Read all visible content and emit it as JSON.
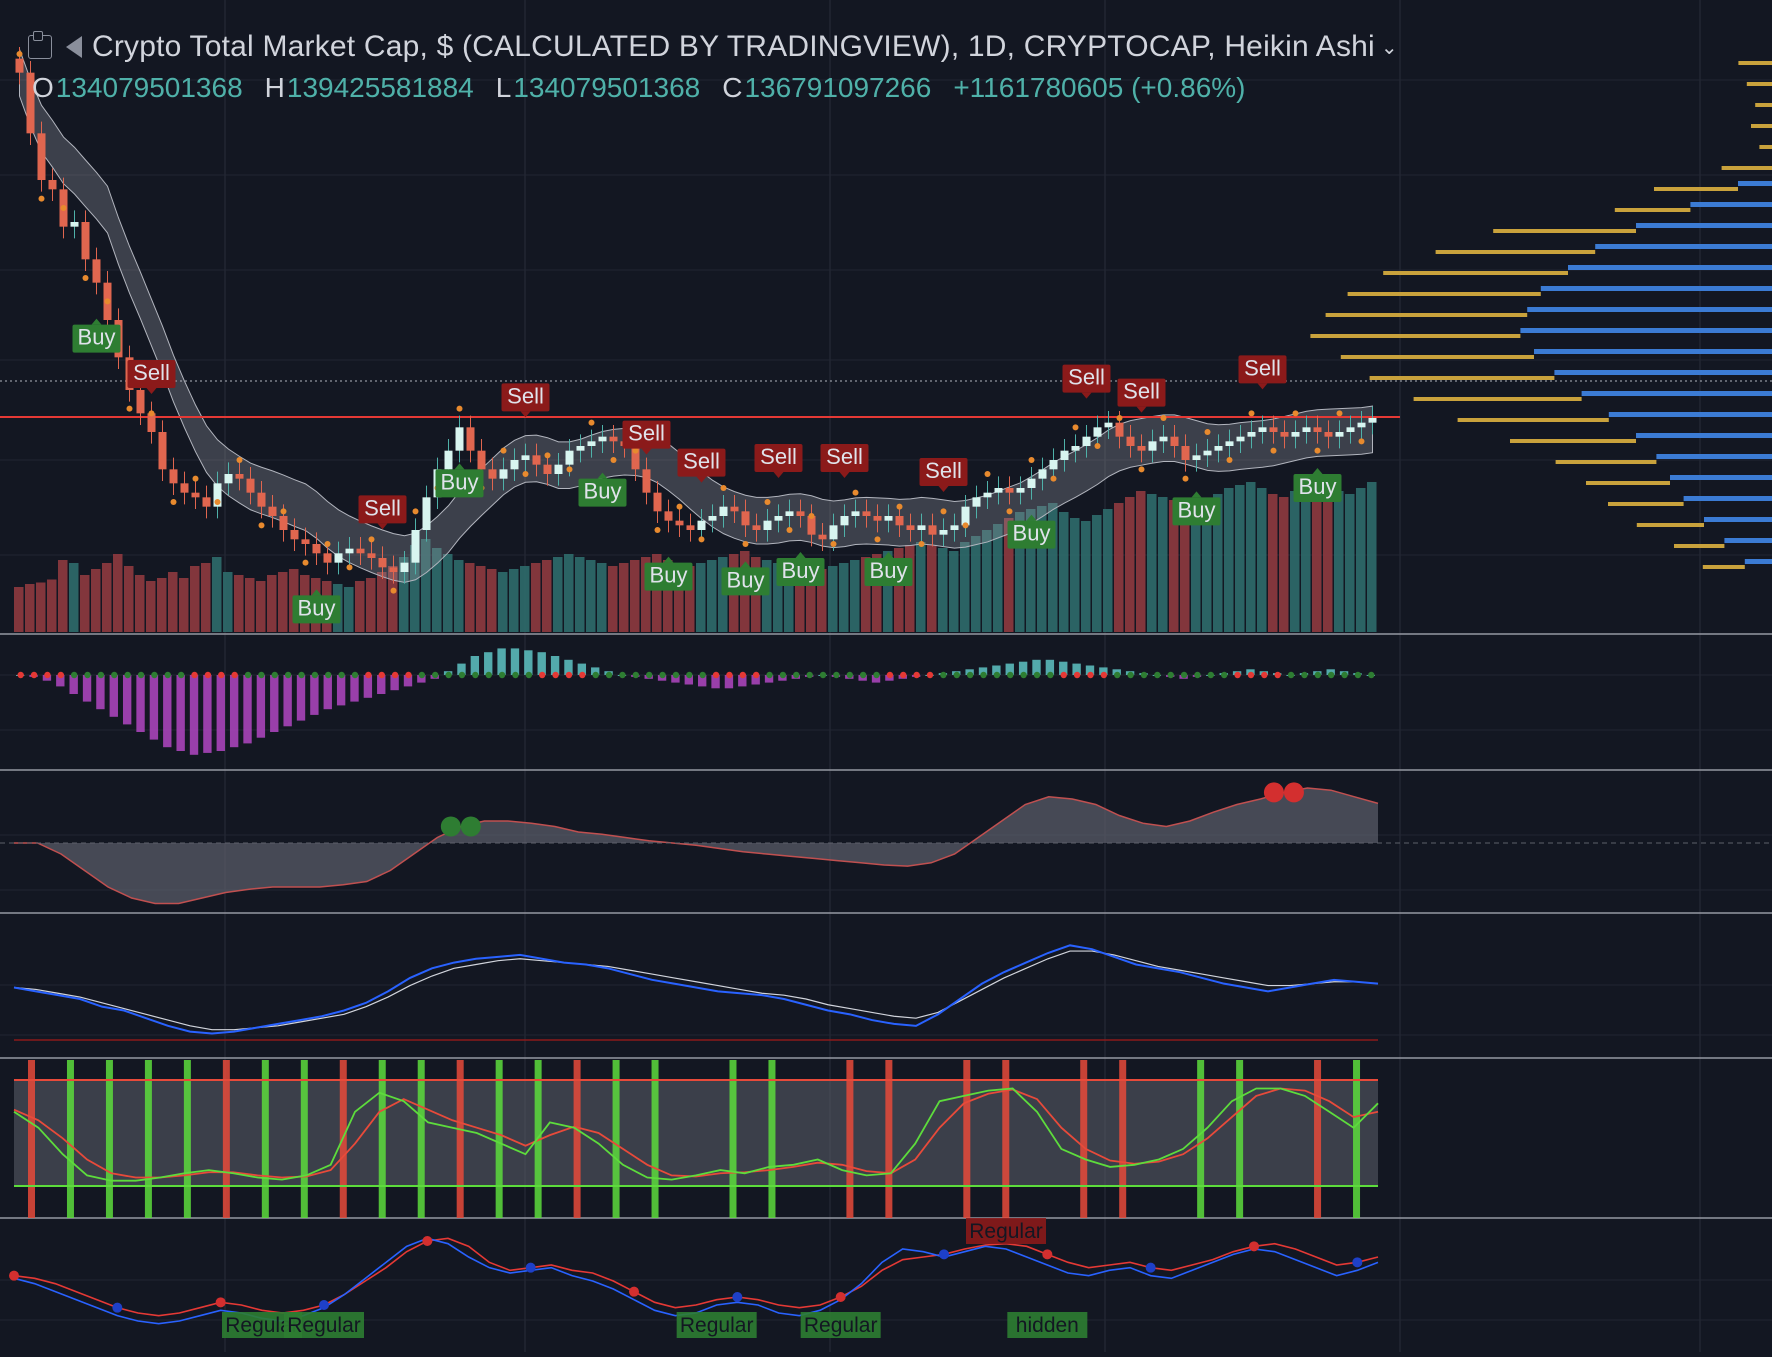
{
  "header": {
    "title": "Crypto Total Market Cap, $ (CALCULATED BY TRADINGVIEW), 1D, CRYPTOCAP, Heikin Ashi",
    "ohlc": {
      "o_label": "O",
      "o_value": "134079501368",
      "h_label": "H",
      "h_value": "139425581884",
      "l_label": "L",
      "l_value": "134079501368",
      "c_label": "C",
      "c_value": "136791097266",
      "change": "+1161780605 (+0.86%)"
    },
    "icons": [
      "chart-logo-icon",
      "flag-icon",
      "chevron-down-icon"
    ]
  },
  "colors": {
    "background": "#131722",
    "bull": "#4fb1a9",
    "bear": "#e0664f",
    "buy_label": "#2e7d32",
    "sell_label": "#8b1a1a",
    "volume_bull": "#2f6b6b",
    "volume_bear": "#8f3a3f",
    "vp_gold": "#c9a23c",
    "vp_blue": "#3b7bd4",
    "macd_bull": "#5fc4c4",
    "macd_bear": "#b146c2",
    "rsi": "#2962ff",
    "stoch_green": "#5ddc3c",
    "stoch_red": "#e84a3a"
  },
  "chart_data": [
    {
      "type": "candlestick",
      "name": "price",
      "closes": [
        173,
        160,
        150,
        148,
        140,
        141,
        133,
        128,
        120,
        112,
        105,
        100,
        96,
        88,
        85,
        83,
        82,
        80,
        85,
        87,
        86,
        83,
        80,
        78,
        75,
        73,
        72,
        70,
        68,
        70,
        71,
        70,
        69,
        67,
        66,
        68,
        75,
        82,
        88,
        92,
        97,
        92,
        88,
        86,
        88,
        90,
        91,
        89,
        87,
        89,
        92,
        93,
        94,
        95,
        94,
        93,
        88,
        83,
        79,
        77,
        76,
        75,
        77,
        78,
        80,
        79,
        76,
        75,
        77,
        78,
        79,
        78,
        74,
        73,
        76,
        78,
        79,
        78,
        77,
        78,
        76,
        75,
        76,
        74,
        75,
        76,
        80,
        82,
        83,
        84,
        83,
        84,
        86,
        88,
        90,
        92,
        93,
        95,
        97,
        98,
        95,
        93,
        92,
        94,
        95,
        93,
        90,
        91,
        92,
        93,
        94,
        95,
        96,
        97,
        96,
        95,
        96,
        97,
        96,
        95,
        96,
        97,
        98,
        99
      ],
      "signals": [
        {
          "label": "Buy",
          "i": 7
        },
        {
          "label": "Sell",
          "i": 12
        },
        {
          "label": "Buy",
          "i": 27
        },
        {
          "label": "Sell",
          "i": 33
        },
        {
          "label": "Buy",
          "i": 40
        },
        {
          "label": "Sell",
          "i": 46
        },
        {
          "label": "Buy",
          "i": 53
        },
        {
          "label": "Sell",
          "i": 57
        },
        {
          "label": "Buy",
          "i": 59
        },
        {
          "label": "Sell",
          "i": 62
        },
        {
          "label": "Buy",
          "i": 66
        },
        {
          "label": "Sell",
          "i": 69
        },
        {
          "label": "Buy",
          "i": 71
        },
        {
          "label": "Sell",
          "i": 75
        },
        {
          "label": "Buy",
          "i": 79
        },
        {
          "label": "Sell",
          "i": 84
        },
        {
          "label": "Buy",
          "i": 92
        },
        {
          "label": "Sell",
          "i": 97
        },
        {
          "label": "Sell",
          "i": 102
        },
        {
          "label": "Buy",
          "i": 107
        },
        {
          "label": "Sell",
          "i": 113
        },
        {
          "label": "Buy",
          "i": 118
        }
      ]
    },
    {
      "type": "bar",
      "name": "volume",
      "values": [
        30,
        32,
        33,
        35,
        48,
        46,
        38,
        42,
        46,
        52,
        44,
        38,
        34,
        36,
        40,
        36,
        44,
        46,
        50,
        40,
        38,
        36,
        34,
        38,
        40,
        42,
        38,
        36,
        34,
        32,
        30,
        34,
        36,
        40,
        44,
        50,
        58,
        62,
        56,
        52,
        48,
        46,
        44,
        42,
        40,
        42,
        44,
        46,
        48,
        50,
        52,
        50,
        48,
        46,
        44,
        46,
        48,
        50,
        52,
        48,
        46,
        44,
        46,
        48,
        50,
        52,
        54,
        50,
        48,
        46,
        44,
        42,
        40,
        42,
        44,
        46,
        48,
        50,
        52,
        54,
        56,
        58,
        60,
        58,
        56,
        54,
        60,
        64,
        68,
        72,
        76,
        80,
        82,
        84,
        86,
        80,
        76,
        74,
        78,
        82,
        86,
        90,
        94,
        92,
        90,
        88,
        86,
        84,
        88,
        92,
        96,
        98,
        100,
        96,
        92,
        90,
        94,
        98,
        100,
        96,
        94,
        92,
        96,
        100
      ]
    },
    {
      "type": "bar",
      "name": "squeeze-momentum",
      "values": [
        0,
        -1,
        -3,
        -6,
        -10,
        -14,
        -18,
        -22,
        -26,
        -30,
        -34,
        -38,
        -40,
        -42,
        -41,
        -40,
        -38,
        -36,
        -33,
        -30,
        -27,
        -24,
        -21,
        -18,
        -16,
        -14,
        -12,
        -10,
        -8,
        -6,
        -4,
        -2,
        2,
        6,
        10,
        12,
        14,
        14,
        13,
        12,
        10,
        8,
        6,
        4,
        2,
        0,
        -1,
        -2,
        -3,
        -4,
        -5,
        -6,
        -7,
        -7,
        -6,
        -5,
        -4,
        -3,
        -2,
        -1,
        0,
        -1,
        -2,
        -3,
        -4,
        -3,
        -2,
        -1,
        0,
        1,
        2,
        3,
        4,
        5,
        6,
        7,
        8,
        8,
        7,
        6,
        5,
        4,
        3,
        2,
        1,
        0,
        -1,
        -2,
        -1,
        0,
        1,
        2,
        3,
        2,
        1,
        0,
        1,
        2,
        3,
        2,
        1,
        0
      ]
    },
    {
      "type": "area",
      "name": "oscillator",
      "values": [
        0,
        0,
        -10,
        -25,
        -40,
        -50,
        -55,
        -55,
        -50,
        -45,
        -42,
        -40,
        -40,
        -40,
        -38,
        -35,
        -25,
        -10,
        5,
        15,
        20,
        20,
        18,
        15,
        10,
        8,
        5,
        2,
        0,
        -2,
        -5,
        -8,
        -10,
        -12,
        -14,
        -16,
        -18,
        -20,
        -21,
        -18,
        -10,
        5,
        20,
        35,
        42,
        40,
        35,
        25,
        18,
        15,
        20,
        28,
        35,
        40,
        46,
        50,
        48,
        42,
        36
      ],
      "markers": [
        {
          "color": "green",
          "i": 19
        },
        {
          "color": "red",
          "i": 54
        }
      ]
    },
    {
      "type": "line",
      "name": "rsi",
      "values": [
        50,
        48,
        46,
        44,
        40,
        38,
        34,
        30,
        27,
        26,
        27,
        29,
        31,
        33,
        35,
        38,
        42,
        48,
        55,
        60,
        63,
        65,
        66,
        67,
        65,
        63,
        62,
        60,
        57,
        54,
        52,
        50,
        48,
        47,
        46,
        44,
        41,
        38,
        36,
        33,
        31,
        30,
        36,
        44,
        52,
        58,
        63,
        68,
        72,
        70,
        66,
        62,
        60,
        58,
        55,
        52,
        50,
        48,
        50,
        52,
        54,
        53,
        52
      ],
      "signal": [
        50,
        49,
        47,
        45,
        42,
        39,
        36,
        33,
        30,
        28,
        28,
        29,
        30,
        32,
        34,
        36,
        40,
        45,
        51,
        56,
        60,
        62,
        64,
        65,
        64,
        63,
        62,
        61,
        59,
        57,
        55,
        53,
        51,
        49,
        47,
        46,
        44,
        41,
        39,
        37,
        35,
        34,
        37,
        43,
        49,
        55,
        60,
        65,
        69,
        69,
        67,
        64,
        61,
        59,
        57,
        55,
        53,
        51,
        51,
        52,
        53,
        53,
        52
      ]
    },
    {
      "type": "line",
      "name": "stochastic",
      "values": [
        70,
        55,
        30,
        10,
        5,
        5,
        8,
        12,
        15,
        12,
        8,
        6,
        10,
        20,
        70,
        88,
        80,
        60,
        55,
        50,
        40,
        30,
        60,
        55,
        40,
        20,
        8,
        6,
        10,
        15,
        12,
        18,
        20,
        25,
        15,
        10,
        12,
        40,
        80,
        85,
        90,
        92,
        70,
        35,
        25,
        18,
        20,
        25,
        35,
        55,
        80,
        92,
        92,
        85,
        70,
        55,
        78
      ],
      "signal": [
        72,
        62,
        45,
        25,
        12,
        8,
        8,
        10,
        13,
        13,
        10,
        8,
        9,
        15,
        40,
        70,
        82,
        72,
        62,
        55,
        48,
        38,
        48,
        56,
        50,
        35,
        20,
        10,
        9,
        12,
        13,
        15,
        18,
        22,
        20,
        14,
        12,
        25,
        55,
        78,
        87,
        91,
        82,
        55,
        35,
        24,
        21,
        23,
        30,
        45,
        65,
        85,
        92,
        90,
        80,
        65,
        70
      ]
    },
    {
      "type": "line",
      "name": "divergence",
      "red": [
        52,
        50,
        46,
        40,
        34,
        28,
        24,
        22,
        24,
        28,
        32,
        30,
        26,
        24,
        26,
        30,
        38,
        48,
        58,
        70,
        78,
        80,
        74,
        62,
        56,
        58,
        60,
        56,
        54,
        48,
        40,
        32,
        28,
        30,
        34,
        36,
        34,
        30,
        28,
        30,
        36,
        44,
        56,
        64,
        66,
        68,
        72,
        75,
        76,
        74,
        68,
        62,
        58,
        60,
        62,
        58,
        56,
        60,
        64,
        70,
        74,
        76,
        72,
        66,
        60,
        62,
        66
      ],
      "blue": [
        50,
        46,
        40,
        34,
        28,
        22,
        18,
        16,
        18,
        22,
        26,
        24,
        20,
        18,
        22,
        28,
        38,
        50,
        62,
        74,
        80,
        76,
        66,
        58,
        54,
        56,
        58,
        52,
        48,
        42,
        34,
        26,
        22,
        24,
        30,
        32,
        30,
        24,
        22,
        26,
        34,
        46,
        62,
        72,
        70,
        66,
        70,
        74,
        72,
        66,
        60,
        54,
        52,
        56,
        58,
        52,
        50,
        56,
        62,
        68,
        72,
        70,
        64,
        58,
        52,
        56,
        62
      ],
      "labels": [
        {
          "text": "Regular",
          "kind": "bull",
          "i": 12
        },
        {
          "text": "Regular",
          "kind": "bull",
          "i": 15
        },
        {
          "text": "Regular",
          "kind": "bull",
          "i": 34
        },
        {
          "text": "Regular",
          "kind": "bull",
          "i": 40
        },
        {
          "text": "Regular",
          "kind": "bear",
          "i": 48
        },
        {
          "text": "hidden",
          "kind": "bull",
          "i": 50
        }
      ]
    },
    {
      "type": "bar",
      "name": "volume-profile",
      "gold": [
        8,
        6,
        4,
        5,
        3,
        12,
        20,
        18,
        34,
        38,
        44,
        46,
        48,
        50,
        46,
        44,
        40,
        36,
        30,
        24,
        20,
        18,
        16,
        12,
        10
      ],
      "blue": [
        0,
        0,
        0,
        0,
        0,
        0,
        10,
        24,
        40,
        52,
        60,
        68,
        72,
        74,
        70,
        64,
        56,
        48,
        40,
        34,
        30,
        26,
        20,
        14,
        8
      ]
    }
  ]
}
